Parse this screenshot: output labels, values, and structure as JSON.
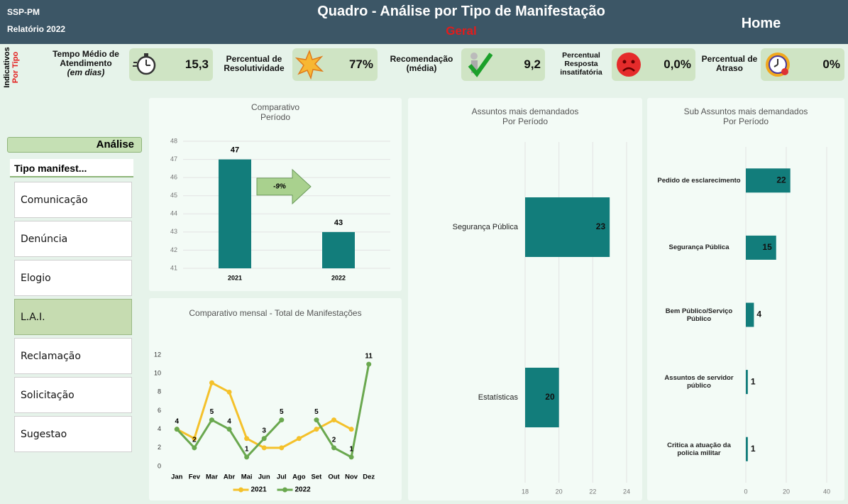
{
  "header": {
    "org": "SSP-PM",
    "report": "Relatório 2022",
    "title": "Quadro - Análise por Tipo de Manifestação",
    "subtitle": "Geral",
    "home": "Home"
  },
  "indicators": {
    "label": "Indicativos",
    "sublabel": "Por Tipo",
    "items": [
      {
        "label": "Tempo Médio de Atendimento",
        "note": "(em dias)",
        "value": "15,3"
      },
      {
        "label": "Percentual de Resolutividade",
        "value": "77%"
      },
      {
        "label": "Recomendação (média)",
        "value": "9,2"
      },
      {
        "label": "Percentual Resposta insatifatória",
        "value": "0,0%"
      },
      {
        "label": "Percentual de Atraso",
        "value": "0%"
      }
    ]
  },
  "filter": {
    "title": "Análise",
    "header": "Tipo manifest...",
    "items": [
      "Comunicação",
      "Denúncia",
      "Elogio",
      "L.A.I.",
      "Reclamação",
      "Solicitação",
      "Sugestao"
    ],
    "selected": 3
  },
  "chart_data": [
    {
      "type": "bar",
      "title": "Comparativo",
      "subtitle": "Período",
      "categories": [
        "2021",
        "2022"
      ],
      "values": [
        47,
        43
      ],
      "color": "#127d7b",
      "ylim": [
        41,
        48
      ],
      "yticks": [
        41,
        42,
        43,
        44,
        45,
        46,
        47,
        48
      ],
      "grid": true,
      "annotation": "-9%"
    },
    {
      "type": "line",
      "title": "Comparativo mensal - Total de Manifestações",
      "categories": [
        "Jan",
        "Fev",
        "Mar",
        "Abr",
        "Mai",
        "Jun",
        "Jul",
        "Ago",
        "Set",
        "Out",
        "Nov",
        "Dez"
      ],
      "series": [
        {
          "name": "2021",
          "color": "#f4c12b",
          "values": [
            4,
            3,
            9,
            8,
            3,
            2,
            2,
            3,
            4,
            5,
            4,
            null
          ]
        },
        {
          "name": "2022",
          "color": "#6aa84f",
          "values": [
            4,
            2,
            5,
            4,
            1,
            3,
            5,
            null,
            5,
            2,
            1,
            11
          ],
          "data_labels": true
        }
      ],
      "ylim": [
        0,
        12
      ],
      "yticks": [
        0,
        2,
        4,
        6,
        8,
        10,
        12
      ],
      "legend": "bottom"
    },
    {
      "type": "hbar",
      "title": "Assuntos mais demandados",
      "subtitle": "Por Período",
      "categories": [
        "Segurança Pública",
        "Estatísticas"
      ],
      "values": [
        23,
        20
      ],
      "color": "#127d7b",
      "xlim": [
        18,
        24
      ],
      "xticks": [
        18,
        20,
        22,
        24
      ],
      "grid": true
    },
    {
      "type": "hbar",
      "title": "Sub Assuntos mais demandados",
      "subtitle": "Por Período",
      "categories": [
        "Pedido de esclarecimento",
        "Segurança Pública",
        "Bem Público/Serviço Público",
        "Assuntos de servidor público",
        "Critica a atuação da policia militar"
      ],
      "values": [
        22,
        15,
        4,
        1,
        1
      ],
      "color": "#127d7b",
      "xlim": [
        0,
        40
      ],
      "xticks": [
        0,
        20,
        40
      ],
      "grid": true
    }
  ]
}
